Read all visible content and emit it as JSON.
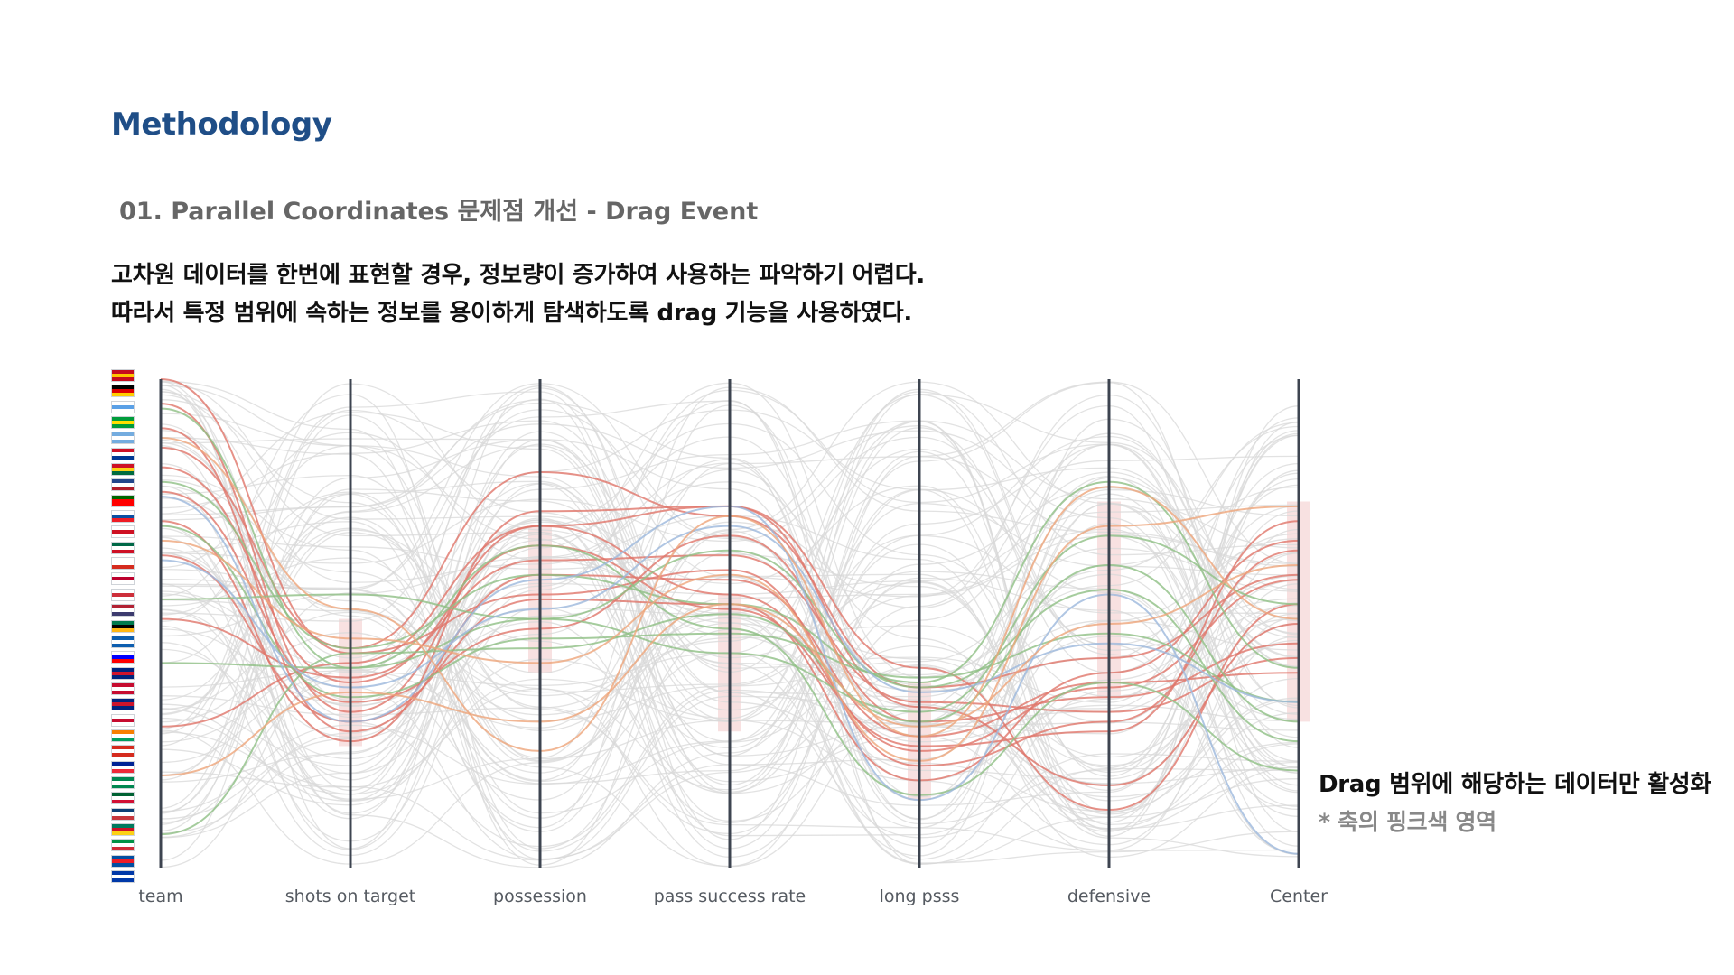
{
  "page": {
    "heading": "Methodology",
    "subheading": "01. Parallel Coordinates 문제점 개선 - Drag Event",
    "description": [
      "고차원 데이터를 한번에 표현할 경우, 정보량이 증가하여 사용하는 파악하기 어렵다.",
      "따라서 특정 범위에 속하는 정보를 용이하게 탐색하도록 drag 기능을 사용하였다."
    ],
    "note": {
      "main": "Drag 범위에 해당하는 데이터만 활성화",
      "sub": "* 축의 핑크색 영역"
    }
  },
  "flags": [
    [
      "#c60b1e",
      "#ffc400",
      "#c60b1e"
    ],
    [
      "#000000",
      "#dd0000",
      "#ffce00"
    ],
    [
      "#ffffff",
      "#5aa0e6",
      "#ffffff"
    ],
    [
      "#009c3b",
      "#ffdf00",
      "#009c3b"
    ],
    [
      "#74acdf",
      "#ffffff",
      "#74acdf"
    ],
    [
      "#ce1126",
      "#ffffff",
      "#003893"
    ],
    [
      "#ce1126",
      "#fcd116",
      "#006b3f"
    ],
    [
      "#21468b",
      "#ffffff",
      "#ae1c28"
    ],
    [
      "#006600",
      "#ff0000",
      "#ff0000"
    ],
    [
      "#ffffff",
      "#0b4ea2",
      "#ee1c25"
    ],
    [
      "#ffffff",
      "#ce1124",
      "#ffffff"
    ],
    [
      "#006847",
      "#ffffff",
      "#ce1126"
    ],
    [
      "#ffffff",
      "#ffffff",
      "#d52b1e"
    ],
    [
      "#ffffff",
      "#bc002d",
      "#ffffff"
    ],
    [
      "#ffffff",
      "#cd2e3a",
      "#ffffff"
    ],
    [
      "#b22234",
      "#ffffff",
      "#3c3b6e"
    ],
    [
      "#007a4d",
      "#000000",
      "#ffb612"
    ],
    [
      "#0d5eaf",
      "#ffffff",
      "#0d5eaf"
    ],
    [
      "#ffffff",
      "#0000ff",
      "#ff0000"
    ],
    [
      "#00247d",
      "#cf142b",
      "#00247d"
    ],
    [
      "#c60c30",
      "#ffffff",
      "#c60c30"
    ],
    [
      "#00247d",
      "#cc142b",
      "#00247d"
    ],
    [
      "#ffffff",
      "#c60c30",
      "#ffffff"
    ],
    [
      "#f77f00",
      "#ffffff",
      "#009e60"
    ],
    [
      "#d52b1e",
      "#ffffff",
      "#d52b1e"
    ],
    [
      "#002395",
      "#ffffff",
      "#ed2939"
    ],
    [
      "#008751",
      "#ffffff",
      "#008751"
    ],
    [
      "#006233",
      "#ffffff",
      "#d21034"
    ],
    [
      "#0c4076",
      "#ffffff",
      "#c6363c"
    ],
    [
      "#007a5e",
      "#ce1126",
      "#fcd116"
    ],
    [
      "#009246",
      "#ffffff",
      "#ce2b37"
    ],
    [
      "#024fa2",
      "#ed1c27",
      "#024fa2"
    ],
    [
      "#0038a8",
      "#ffffff",
      "#0038a8"
    ]
  ],
  "chart_data": {
    "type": "parallel-coordinates",
    "axes": [
      "team",
      "shots on target",
      "possession",
      "pass success rate",
      "long psss",
      "defensive",
      "Center"
    ],
    "brushed_ranges": {
      "shots on target": [
        0.49,
        0.75
      ],
      "possession": [
        0.3,
        0.6
      ],
      "pass success rate": [
        0.44,
        0.72
      ],
      "long psss": [
        0.62,
        0.86
      ],
      "defensive": [
        0.25,
        0.65
      ],
      "Center": [
        0.25,
        0.7
      ]
    },
    "line_colors": {
      "inactive": "#d8d8d8",
      "highlight_red": "#e0756a",
      "highlight_green": "#8fbf84",
      "highlight_blue": "#9cb8dc",
      "highlight_orange": "#eda57b"
    },
    "highlight_series": [
      {
        "color": "red",
        "values": [
          0.0,
          0.56,
          0.44,
          0.39,
          0.79,
          0.7,
          0.35
        ]
      },
      {
        "color": "red",
        "values": [
          0.05,
          0.68,
          0.3,
          0.26,
          0.67,
          0.83,
          0.5
        ]
      },
      {
        "color": "red",
        "values": [
          0.1,
          0.72,
          0.4,
          0.41,
          0.73,
          0.62,
          0.6
        ]
      },
      {
        "color": "red",
        "values": [
          0.14,
          0.55,
          0.19,
          0.28,
          0.63,
          0.57,
          0.4
        ]
      },
      {
        "color": "red",
        "values": [
          0.18,
          0.62,
          0.34,
          0.47,
          0.75,
          0.72,
          0.29
        ]
      },
      {
        "color": "red",
        "values": [
          0.23,
          0.66,
          0.51,
          0.32,
          0.7,
          0.65,
          0.54
        ]
      },
      {
        "color": "red",
        "values": [
          0.29,
          0.74,
          0.27,
          0.26,
          0.59,
          0.88,
          0.46
        ]
      },
      {
        "color": "red",
        "values": [
          0.36,
          0.7,
          0.45,
          0.46,
          0.82,
          0.6,
          0.33
        ]
      },
      {
        "color": "red",
        "values": [
          0.49,
          0.61,
          0.37,
          0.36,
          0.66,
          0.68,
          0.57
        ]
      },
      {
        "color": "red",
        "values": [
          0.71,
          0.58,
          0.3,
          0.44,
          0.76,
          0.63,
          0.41
        ]
      },
      {
        "color": "green",
        "values": [
          0.06,
          0.59,
          0.49,
          0.35,
          0.63,
          0.43,
          0.74
        ]
      },
      {
        "color": "green",
        "values": [
          0.21,
          0.55,
          0.4,
          0.46,
          0.62,
          0.21,
          0.59
        ]
      },
      {
        "color": "green",
        "values": [
          0.3,
          0.65,
          0.53,
          0.52,
          0.61,
          0.52,
          0.66
        ]
      },
      {
        "color": "green",
        "values": [
          0.45,
          0.44,
          0.49,
          0.56,
          0.68,
          0.32,
          0.46
        ]
      },
      {
        "color": "green",
        "values": [
          0.58,
          0.59,
          0.34,
          0.51,
          0.85,
          0.62,
          0.8
        ]
      },
      {
        "color": "green",
        "values": [
          0.93,
          0.56,
          0.55,
          0.48,
          0.7,
          0.38,
          0.7
        ]
      },
      {
        "color": "blue",
        "values": [
          0.24,
          0.7,
          0.41,
          0.26,
          0.86,
          0.44,
          0.97
        ]
      },
      {
        "color": "blue",
        "values": [
          0.37,
          0.63,
          0.47,
          0.3,
          0.64,
          0.54,
          0.66
        ]
      },
      {
        "color": "orange",
        "values": [
          0.12,
          0.47,
          0.76,
          0.28,
          0.73,
          0.22,
          0.49
        ]
      },
      {
        "color": "orange",
        "values": [
          0.33,
          0.53,
          0.58,
          0.4,
          0.78,
          0.3,
          0.26
        ]
      },
      {
        "color": "orange",
        "values": [
          0.81,
          0.64,
          0.7,
          0.46,
          0.71,
          0.5,
          0.38
        ]
      }
    ]
  }
}
